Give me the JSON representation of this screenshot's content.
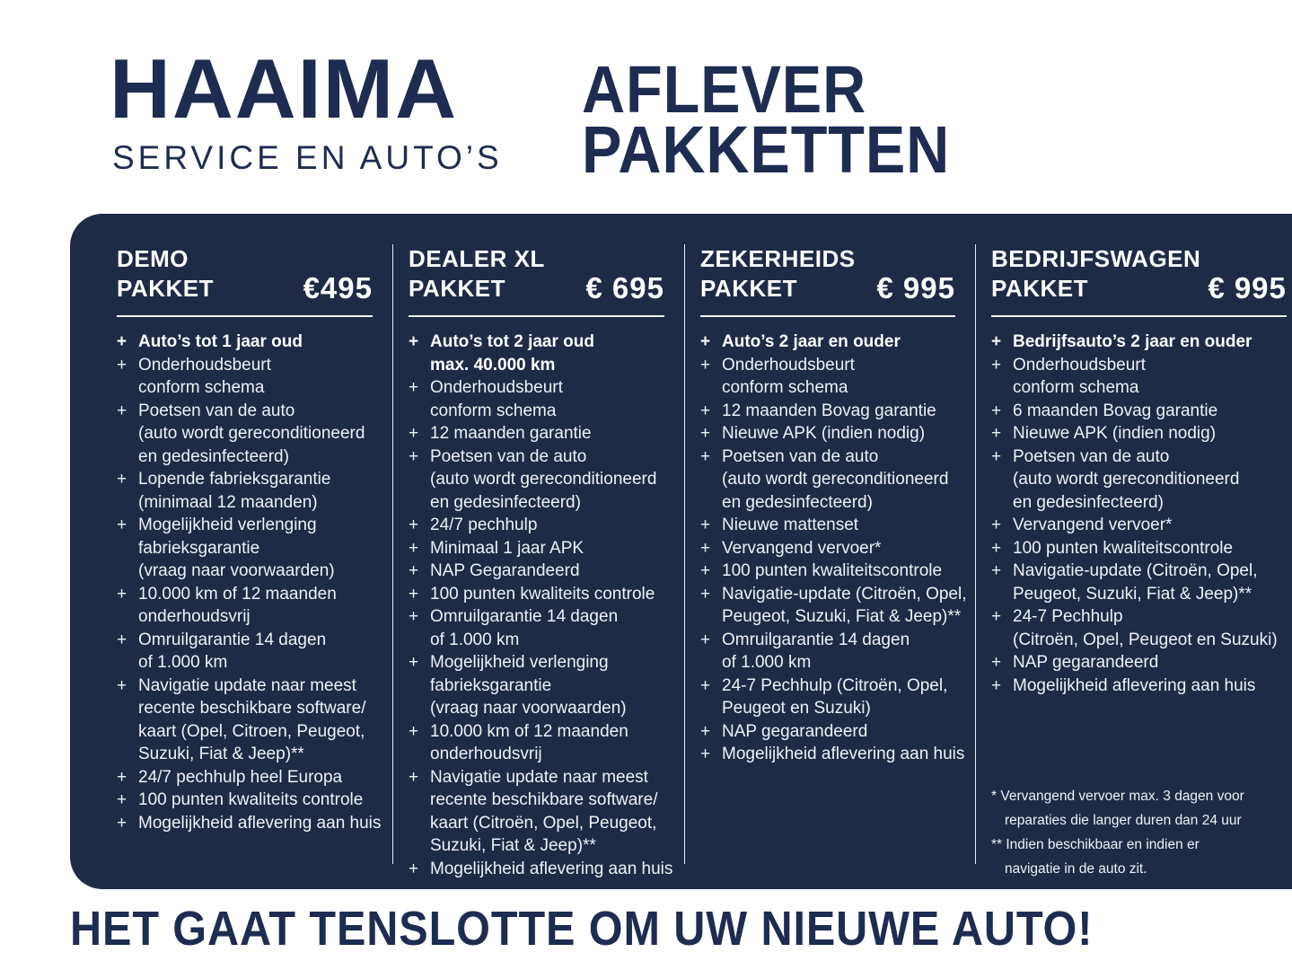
{
  "header": {
    "brand": "HAAIMA",
    "brand_subtitle": "SERVICE EN AUTO’S",
    "title_line1": "AFLEVER",
    "title_line2": "PAKKETTEN"
  },
  "ui": {
    "plus_marker": "+"
  },
  "colors": {
    "navy_text": "#1f2c51",
    "panel_bg": "#1f2a47",
    "item_text": "#eef1f7"
  },
  "packages": [
    {
      "name_line1": "DEMO",
      "name_line2": "PAKKET",
      "price": "€495",
      "items": [
        {
          "bold": true,
          "lines": [
            "Auto’s tot 1 jaar oud"
          ]
        },
        {
          "lines": [
            "Onderhoudsbeurt",
            "conform schema"
          ]
        },
        {
          "lines": [
            "Poetsen van de auto",
            "(auto wordt gereconditioneerd",
            "en gedesinfecteerd)"
          ]
        },
        {
          "lines": [
            "Lopende fabrieksgarantie",
            "(minimaal 12 maanden)"
          ]
        },
        {
          "lines": [
            "Mogelijkheid verlenging",
            "fabrieksgarantie",
            "(vraag naar voorwaarden)"
          ]
        },
        {
          "lines": [
            "10.000 km of 12 maanden",
            "onderhoudsvrij"
          ]
        },
        {
          "lines": [
            "Omruilgarantie 14 dagen",
            "of 1.000 km"
          ]
        },
        {
          "lines": [
            "Navigatie update naar meest",
            "recente beschikbare software/",
            "kaart (Opel, Citroen,  Peugeot,",
            "Suzuki, Fiat & Jeep)**"
          ]
        },
        {
          "lines": [
            "24/7 pechhulp heel Europa"
          ]
        },
        {
          "lines": [
            "100 punten kwaliteits controle"
          ]
        },
        {
          "lines": [
            "Mogelijkheid aflevering aan huis"
          ]
        }
      ]
    },
    {
      "name_line1": "DEALER XL",
      "name_line2": "PAKKET",
      "price": "€ 695",
      "items": [
        {
          "bold": true,
          "lines": [
            "Auto’s tot 2 jaar oud",
            "max. 40.000 km"
          ]
        },
        {
          "lines": [
            "Onderhoudsbeurt",
            "conform schema"
          ]
        },
        {
          "lines": [
            "12 maanden garantie"
          ]
        },
        {
          "lines": [
            "Poetsen van de auto",
            "(auto wordt gereconditioneerd",
            "en gedesinfecteerd)"
          ]
        },
        {
          "lines": [
            "24/7 pechhulp"
          ]
        },
        {
          "lines": [
            "Minimaal 1 jaar APK"
          ]
        },
        {
          "lines": [
            "NAP Gegarandeerd"
          ]
        },
        {
          "lines": [
            "100 punten kwaliteits controle"
          ]
        },
        {
          "lines": [
            "Omruilgarantie 14 dagen",
            "of 1.000 km"
          ]
        },
        {
          "lines": [
            "Mogelijkheid verlenging",
            "fabrieksgarantie",
            "(vraag naar voorwaarden)"
          ]
        },
        {
          "lines": [
            "10.000 km of 12 maanden",
            "onderhoudsvrij"
          ]
        },
        {
          "lines": [
            "Navigatie update naar meest",
            "recente beschikbare software/",
            "kaart (Citroën, Opel, Peugeot,",
            "Suzuki, Fiat & Jeep)**"
          ]
        },
        {
          "lines": [
            "Mogelijkheid aflevering aan huis"
          ]
        }
      ]
    },
    {
      "name_line1": "ZEKERHEIDS",
      "name_line2": "PAKKET",
      "price": "€ 995",
      "items": [
        {
          "bold": true,
          "lines": [
            "Auto’s 2 jaar en ouder"
          ]
        },
        {
          "lines": [
            "Onderhoudsbeurt",
            "conform schema"
          ]
        },
        {
          "lines": [
            "12 maanden Bovag garantie"
          ]
        },
        {
          "lines": [
            "Nieuwe APK (indien nodig)"
          ]
        },
        {
          "lines": [
            "Poetsen van de auto",
            "(auto wordt gereconditioneerd",
            "en gedesinfecteerd)"
          ]
        },
        {
          "lines": [
            "Nieuwe mattenset"
          ]
        },
        {
          "lines": [
            "Vervangend vervoer*"
          ]
        },
        {
          "lines": [
            "100 punten kwaliteitscontrole"
          ]
        },
        {
          "lines": [
            "Navigatie-update (Citroën, Opel,",
            "Peugeot, Suzuki, Fiat & Jeep)**"
          ]
        },
        {
          "lines": [
            "Omruilgarantie 14 dagen",
            "of 1.000 km"
          ]
        },
        {
          "lines": [
            "24-7 Pechhulp (Citroën, Opel,",
            "Peugeot en Suzuki)"
          ]
        },
        {
          "lines": [
            "NAP gegarandeerd"
          ]
        },
        {
          "lines": [
            "Mogelijkheid aflevering aan huis"
          ]
        }
      ]
    },
    {
      "name_line1": "BEDRIJFSWAGEN",
      "name_line2": "PAKKET",
      "price": "€ 995",
      "items": [
        {
          "bold": true,
          "lines": [
            "Bedrijfsauto’s 2 jaar en ouder"
          ]
        },
        {
          "lines": [
            "Onderhoudsbeurt",
            "conform schema"
          ]
        },
        {
          "lines": [
            "6 maanden Bovag garantie"
          ]
        },
        {
          "lines": [
            "Nieuwe APK (indien nodig)"
          ]
        },
        {
          "lines": [
            "Poetsen van de auto",
            "(auto wordt gereconditioneerd",
            "en gedesinfecteerd)"
          ]
        },
        {
          "lines": [
            "Vervangend vervoer*"
          ]
        },
        {
          "lines": [
            "100 punten kwaliteitscontrole"
          ]
        },
        {
          "lines": [
            "Navigatie-update (Citroën, Opel,",
            "Peugeot, Suzuki, Fiat & Jeep)**"
          ]
        },
        {
          "lines": [
            "24-7 Pechhulp",
            "(Citroën, Opel, Peugeot en Suzuki)"
          ]
        },
        {
          "lines": [
            "NAP gegarandeerd"
          ]
        },
        {
          "lines": [
            "Mogelijkheid aflevering aan huis"
          ]
        }
      ],
      "footnotes": [
        {
          "marker": "*",
          "lines": [
            "Vervangend vervoer max. 3 dagen voor",
            "reparaties die langer duren dan 24 uur"
          ]
        },
        {
          "marker": "**",
          "lines": [
            "Indien beschikbaar en indien er",
            "navigatie in de auto zit."
          ]
        }
      ]
    }
  ],
  "tagline": "HET GAAT TENSLOTTE OM UW NIEUWE AUTO!"
}
